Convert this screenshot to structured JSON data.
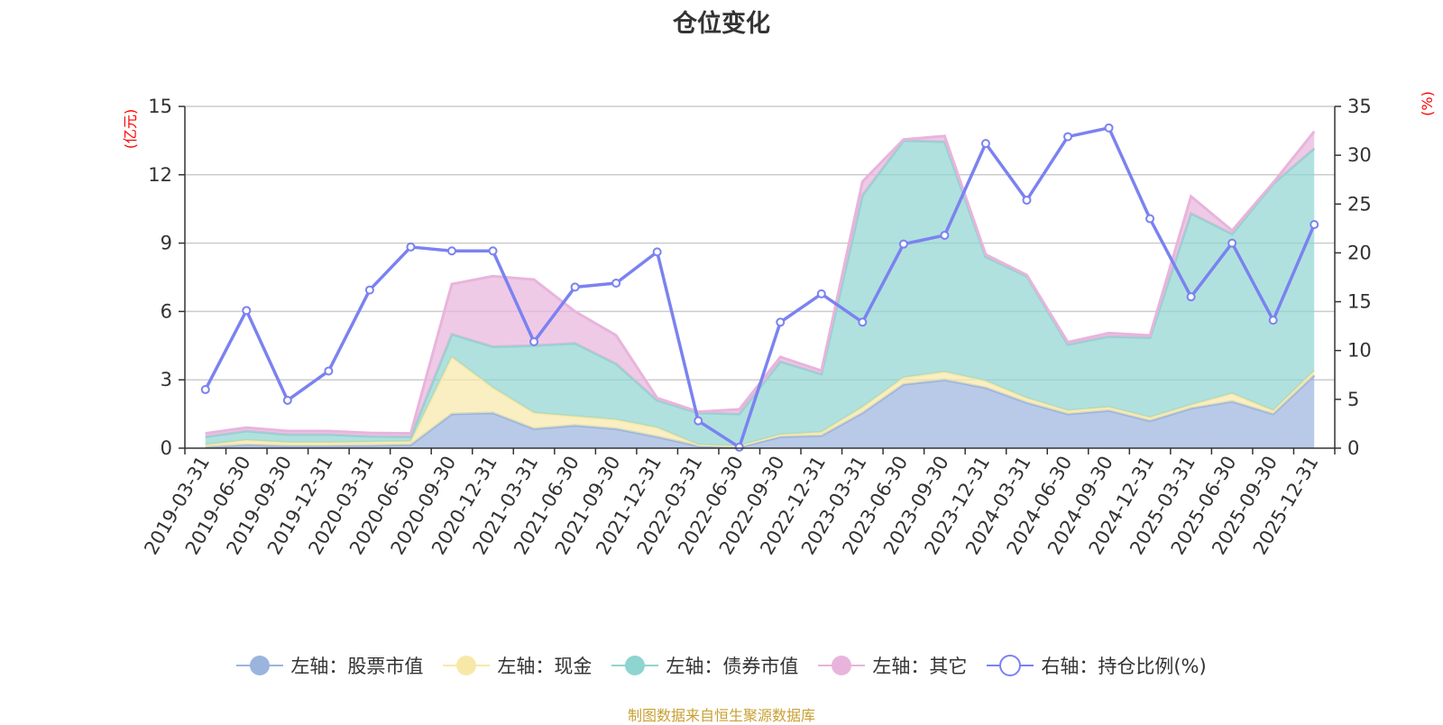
{
  "chart_data": {
    "type": "area",
    "title": "仓位变化",
    "source_note": "制图数据来自恒生聚源数据库",
    "left_axis": {
      "label": "(亿元)",
      "min": 0,
      "max": 15,
      "ticks": [
        0,
        3,
        6,
        9,
        12,
        15
      ]
    },
    "right_axis": {
      "label": "(%)",
      "min": 0,
      "max": 35,
      "ticks": [
        0,
        5,
        10,
        15,
        20,
        25,
        30,
        35
      ]
    },
    "categories": [
      "2019-03-31",
      "2019-06-30",
      "2019-09-30",
      "2019-12-31",
      "2020-03-31",
      "2020-06-30",
      "2020-09-30",
      "2020-12-31",
      "2021-03-31",
      "2021-06-30",
      "2021-09-30",
      "2021-12-31",
      "2022-03-31",
      "2022-06-30",
      "2022-09-30",
      "2022-12-31",
      "2023-03-31",
      "2023-06-30",
      "2023-09-30",
      "2023-12-31",
      "2024-03-31",
      "2024-06-30",
      "2024-09-30",
      "2024-12-31",
      "2025-03-31",
      "2025-06-30",
      "2025-09-30",
      "2025-12-31"
    ],
    "stacked_series": [
      {
        "name": "左轴：股票市值",
        "color": "#9ab4de",
        "values": [
          0.05,
          0.15,
          0.1,
          0.1,
          0.12,
          0.15,
          1.5,
          1.55,
          0.85,
          1.0,
          0.85,
          0.5,
          0.1,
          0.05,
          0.5,
          0.55,
          1.55,
          2.8,
          3.0,
          2.65,
          2.0,
          1.5,
          1.65,
          1.2,
          1.75,
          2.05,
          1.5,
          3.2
        ]
      },
      {
        "name": "左轴：现金",
        "color": "#f8e8a8",
        "values": [
          0.1,
          0.2,
          0.15,
          0.15,
          0.15,
          0.15,
          2.5,
          1.1,
          0.7,
          0.4,
          0.4,
          0.4,
          0.05,
          0.05,
          0.1,
          0.15,
          0.25,
          0.3,
          0.35,
          0.3,
          0.2,
          0.15,
          0.15,
          0.15,
          0.15,
          0.35,
          0.15,
          0.2
        ]
      },
      {
        "name": "左轴：债券市值",
        "color": "#8ed4d0",
        "values": [
          0.35,
          0.4,
          0.35,
          0.35,
          0.25,
          0.2,
          1.0,
          1.8,
          2.95,
          3.2,
          2.45,
          1.2,
          1.4,
          1.4,
          3.2,
          2.55,
          9.3,
          10.4,
          10.1,
          5.45,
          5.35,
          2.9,
          3.1,
          3.5,
          8.4,
          7.0,
          9.95,
          9.75
        ]
      },
      {
        "name": "左轴：其它",
        "color": "#e8b4dc",
        "values": [
          0.15,
          0.15,
          0.15,
          0.15,
          0.15,
          0.15,
          2.2,
          3.1,
          2.9,
          1.4,
          1.25,
          0.1,
          0.05,
          0.2,
          0.2,
          0.15,
          0.6,
          0.05,
          0.25,
          0.1,
          0.05,
          0.1,
          0.15,
          0.1,
          0.75,
          0.15,
          0.05,
          0.75
        ]
      }
    ],
    "line_series": {
      "name": "右轴：持仓比例(%)",
      "color": "#7b82f0",
      "axis": "right",
      "values": [
        6.0,
        14.1,
        4.9,
        7.9,
        16.2,
        20.6,
        20.2,
        20.2,
        10.9,
        16.5,
        16.9,
        20.1,
        2.8,
        0.1,
        12.9,
        15.8,
        12.9,
        20.9,
        21.8,
        31.2,
        25.4,
        31.9,
        32.8,
        23.5,
        15.5,
        21.0,
        13.1,
        22.9
      ]
    }
  },
  "legend": [
    {
      "label": "左轴：股票市值",
      "icon": "filled-circle",
      "color": "#9ab4de"
    },
    {
      "label": "左轴：现金",
      "icon": "filled-circle",
      "color": "#f8e8a8"
    },
    {
      "label": "左轴：债券市值",
      "icon": "filled-circle",
      "color": "#8ed4d0"
    },
    {
      "label": "左轴：其它",
      "icon": "filled-circle",
      "color": "#e8b4dc"
    },
    {
      "label": "右轴：持仓比例(%)",
      "icon": "hollow-circle",
      "color": "#7b82f0"
    }
  ]
}
